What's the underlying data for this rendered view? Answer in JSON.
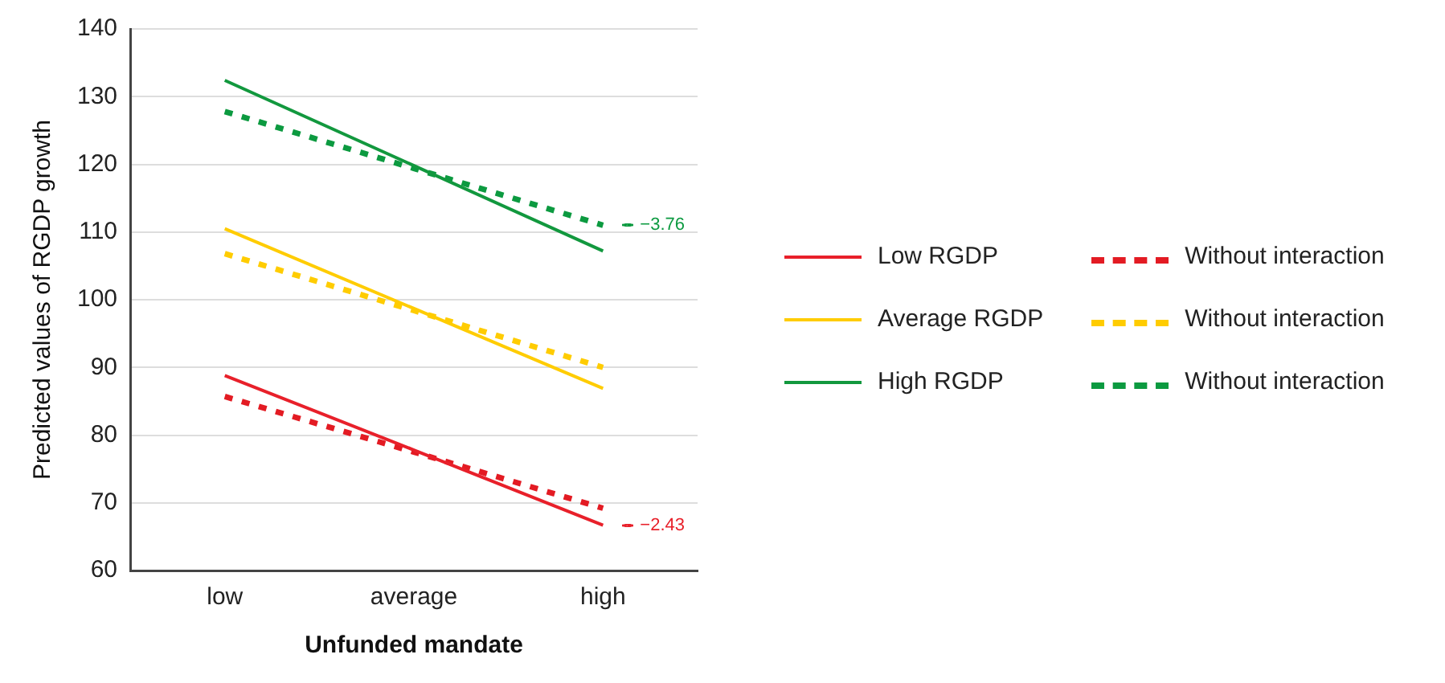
{
  "chart_data": {
    "type": "line",
    "xlabel": "Unfunded mandate",
    "ylabel": "Predicted values of RGDP growth",
    "categories": [
      "low",
      "average",
      "high"
    ],
    "ylim": [
      60,
      140
    ],
    "yticks": [
      60,
      70,
      80,
      90,
      100,
      110,
      120,
      130,
      140
    ],
    "grid": "y",
    "legend": "right",
    "marker": "none",
    "series": [
      {
        "name": "Low RGDP",
        "color": "#e8202a",
        "values": [
          88.8,
          77.8,
          66.7
        ],
        "line_style": "solid"
      },
      {
        "name": "Average RGDP",
        "color": "#ffcc00",
        "values": [
          110.5,
          98.7,
          86.9
        ],
        "line_style": "solid"
      },
      {
        "name": "High RGDP",
        "color": "#12983e",
        "values": [
          132.4,
          119.8,
          107.2
        ],
        "line_style": "solid"
      },
      {
        "name": "Without interaction",
        "color": "#e31b23",
        "values": [
          85.7,
          77.5,
          69.2
        ],
        "line_style": "dotted"
      },
      {
        "name": "Without interaction",
        "color": "#ffcc00",
        "values": [
          106.8,
          98.4,
          90.0
        ],
        "line_style": "dotted"
      },
      {
        "name": "Without interaction",
        "color": "#0c9a40",
        "values": [
          127.8,
          119.4,
          111.0
        ],
        "line_style": "dotted"
      }
    ],
    "annotations": [
      "−3.76",
      "−2.43"
    ]
  }
}
